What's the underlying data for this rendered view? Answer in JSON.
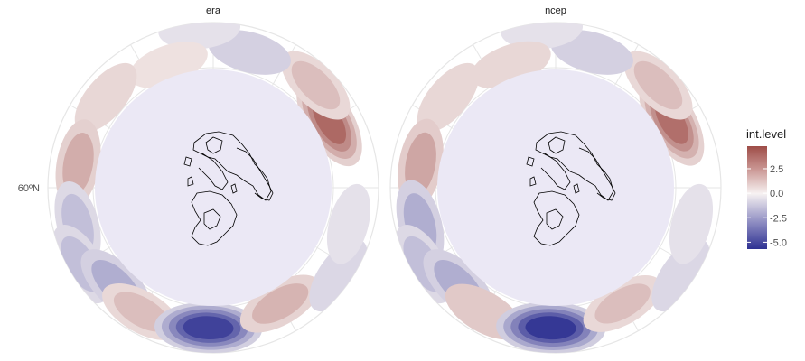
{
  "chart_data": {
    "type": "heatmap",
    "projection": "polar (north polar stereographic)",
    "panels": [
      {
        "name": "era",
        "anomalies": [
          {
            "lon": -60,
            "lat": 40,
            "value": 4.0
          },
          {
            "lon": -45,
            "lat": 33,
            "value": 1.5
          },
          {
            "lon": -15,
            "lat": 36,
            "value": -1.0
          },
          {
            "lon": 5,
            "lat": 24,
            "value": -0.5
          },
          {
            "lon": 20,
            "lat": 42,
            "value": 0.5
          },
          {
            "lon": 50,
            "lat": 36,
            "value": 0.8
          },
          {
            "lon": 80,
            "lat": 38,
            "value": 2.0
          },
          {
            "lon": 105,
            "lat": 36,
            "value": -1.5
          },
          {
            "lon": 120,
            "lat": 28,
            "value": -1.5
          },
          {
            "lon": 135,
            "lat": 38,
            "value": -2.0
          },
          {
            "lon": 150,
            "lat": 34,
            "value": 1.5
          },
          {
            "lon": 178,
            "lat": 36,
            "value": -5.2
          },
          {
            "lon": 210,
            "lat": 40,
            "value": 1.8
          },
          {
            "lon": 235,
            "lat": 28,
            "value": -0.8
          },
          {
            "lon": 255,
            "lat": 36,
            "value": -0.5
          }
        ]
      },
      {
        "name": "ncep",
        "anomalies": [
          {
            "lon": -60,
            "lat": 40,
            "value": 3.8
          },
          {
            "lon": -45,
            "lat": 33,
            "value": 1.5
          },
          {
            "lon": -15,
            "lat": 36,
            "value": -1.0
          },
          {
            "lon": 5,
            "lat": 24,
            "value": -0.5
          },
          {
            "lon": 20,
            "lat": 42,
            "value": 0.8
          },
          {
            "lon": 50,
            "lat": 36,
            "value": 0.8
          },
          {
            "lon": 80,
            "lat": 38,
            "value": 2.2
          },
          {
            "lon": 105,
            "lat": 36,
            "value": -2.0
          },
          {
            "lon": 120,
            "lat": 28,
            "value": -1.5
          },
          {
            "lon": 135,
            "lat": 38,
            "value": -2.0
          },
          {
            "lon": 150,
            "lat": 34,
            "value": 1.2
          },
          {
            "lon": 178,
            "lat": 36,
            "value": -5.5
          },
          {
            "lon": 210,
            "lat": 40,
            "value": 1.5
          },
          {
            "lon": 235,
            "lat": 28,
            "value": -0.8
          },
          {
            "lon": 255,
            "lat": 36,
            "value": -0.5
          }
        ]
      }
    ],
    "latitude_label": "60ºN",
    "latitude_label_value": 60,
    "mask_latitude": 50,
    "outer_latitude": 20,
    "legend": {
      "title": "int.level",
      "ticks": [
        2.5,
        0.0,
        -2.5,
        -5.0
      ],
      "tick_labels": [
        "2.5",
        "0.0",
        "-2.5",
        "-5.0"
      ],
      "range": [
        -5.7,
        4.8
      ],
      "low_color": "#2e3192",
      "mid_color": "#f7f2f2",
      "high_color": "#9e4d48",
      "placement": "right"
    },
    "mask_color": "#ebe8f5",
    "gridline_color": "#e6e6e6",
    "coastline_color": "#000000",
    "grid": true
  }
}
